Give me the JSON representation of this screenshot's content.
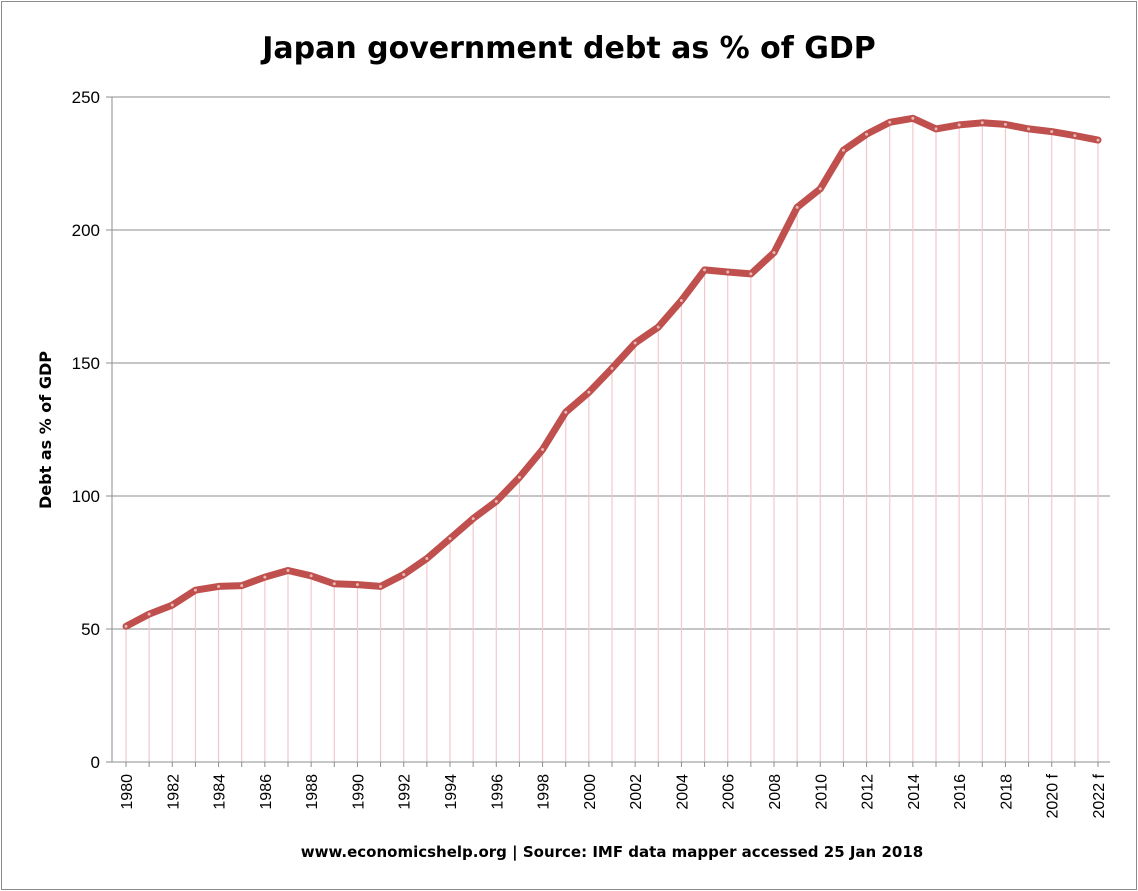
{
  "chart_data": {
    "type": "line",
    "title": "Japan government debt as % of GDP",
    "xlabel": "",
    "ylabel": "Debt as % of GDP",
    "source_note": "www.economicshelp.org | Source: IMF data mapper accessed 25 Jan 2018",
    "ylim": [
      0,
      250
    ],
    "yticks": [
      "0",
      "50",
      "100",
      "150",
      "200",
      "250"
    ],
    "grid": true,
    "series_color": "#c0504d",
    "drop_line_color": "#f2c8cc",
    "categories": [
      "1980",
      "1981",
      "1982",
      "1983",
      "1984",
      "1985",
      "1986",
      "1987",
      "1988",
      "1989",
      "1990",
      "1991",
      "1992",
      "1993",
      "1994",
      "1995",
      "1996",
      "1997",
      "1998",
      "1999",
      "2000",
      "2001",
      "2002",
      "2003",
      "2004",
      "2005",
      "2006",
      "2007",
      "2008",
      "2009",
      "2010",
      "2011",
      "2012",
      "2013",
      "2014",
      "2015",
      "2016",
      "2017",
      "2018",
      "2019",
      "2020 f",
      "2021",
      "2022 f"
    ],
    "xtick_labels": [
      "1980",
      "",
      "1982",
      "",
      "1984",
      "",
      "1986",
      "",
      "1988",
      "",
      "1990",
      "",
      "1992",
      "",
      "1994",
      "",
      "1996",
      "",
      "1998",
      "",
      "2000",
      "",
      "2002",
      "",
      "2004",
      "",
      "2006",
      "",
      "2008",
      "",
      "2010",
      "",
      "2012",
      "",
      "2014",
      "",
      "2016",
      "",
      "2018",
      "",
      "2020 f",
      "",
      "2022 f"
    ],
    "series": [
      {
        "name": "Debt as % of GDP",
        "values": [
          51,
          55.6,
          59,
          64.6,
          66,
          66.3,
          69.5,
          72,
          70,
          67,
          66.7,
          66,
          70.5,
          76.5,
          84,
          91.5,
          98,
          107,
          117.5,
          131.5,
          139,
          148,
          157.5,
          163.5,
          173.5,
          185,
          184.2,
          183.5,
          191.5,
          208.5,
          215.5,
          230,
          236,
          240.5,
          242,
          238,
          239.5,
          240.3,
          239.7,
          238,
          237,
          235.5,
          233.8
        ]
      }
    ]
  }
}
